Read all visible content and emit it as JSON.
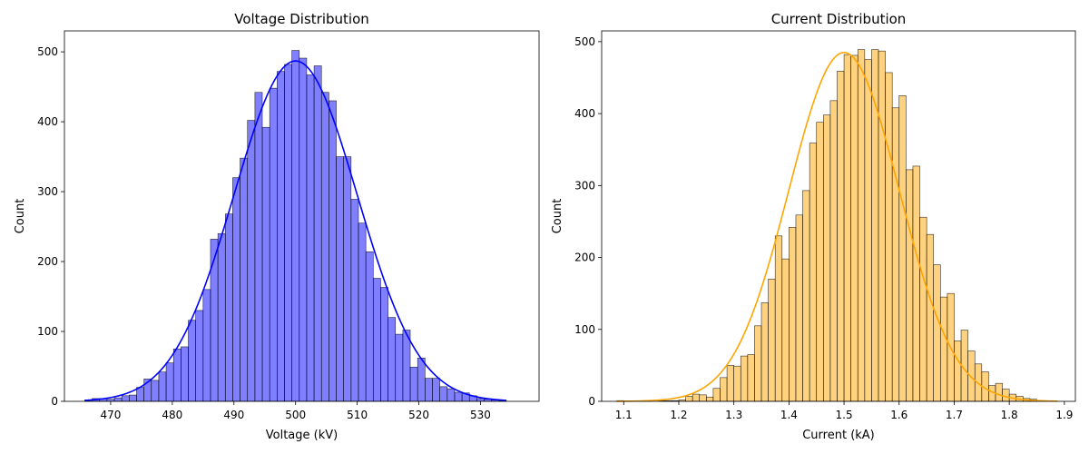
{
  "chart_data": [
    {
      "type": "histogram",
      "title": "Voltage Distribution",
      "xlabel": "Voltage (kV)",
      "ylabel": "Count",
      "xlim": [
        462.5,
        539.5
      ],
      "ylim": [
        0,
        530
      ],
      "x_ticks": [
        "470",
        "480",
        "490",
        "500",
        "510",
        "520",
        "530"
      ],
      "y_ticks": [
        "0",
        "100",
        "200",
        "300",
        "400",
        "500"
      ],
      "bar_color": "#0000ff",
      "bar_opacity": 0.5,
      "kde_color": "#0000ff",
      "bin_width": 1.2,
      "bin_start": 465.8,
      "counts": [
        2,
        4,
        4,
        3,
        5,
        8,
        9,
        20,
        32,
        30,
        42,
        55,
        75,
        78,
        116,
        130,
        160,
        232,
        240,
        268,
        320,
        348,
        402,
        442,
        392,
        448,
        472,
        482,
        502,
        491,
        467,
        480,
        442,
        430,
        350,
        350,
        289,
        255,
        214,
        176,
        163,
        120,
        96,
        102,
        49,
        62,
        33,
        33,
        21,
        18,
        13,
        12,
        8,
        4,
        3,
        2,
        1
      ],
      "kde_peak": 487,
      "kde_mean": 500.0,
      "kde_sd": 10.0
    },
    {
      "type": "histogram",
      "title": "Current Distribution",
      "xlabel": "Current (kA)",
      "ylabel": "Count",
      "xlim": [
        1.06,
        1.92
      ],
      "ylim": [
        0,
        515
      ],
      "x_ticks": [
        "1.1",
        "1.2",
        "1.3",
        "1.4",
        "1.5",
        "1.6",
        "1.7",
        "1.8",
        "1.9"
      ],
      "y_ticks": [
        "0",
        "100",
        "200",
        "300",
        "400",
        "500"
      ],
      "bar_color": "#ffa500",
      "bar_opacity": 0.5,
      "kde_color": "#ffa500",
      "bin_width": 0.0125,
      "bin_start": 1.0875,
      "counts": [
        1,
        0,
        0,
        0,
        1,
        0,
        1,
        1,
        1,
        2,
        7,
        10,
        9,
        6,
        18,
        33,
        50,
        49,
        63,
        65,
        105,
        137,
        170,
        230,
        198,
        242,
        259,
        293,
        359,
        388,
        398,
        418,
        459,
        482,
        481,
        489,
        475,
        489,
        487,
        457,
        408,
        425,
        322,
        327,
        256,
        232,
        190,
        145,
        150,
        84,
        99,
        70,
        52,
        41,
        22,
        25,
        17,
        10,
        7,
        4,
        3,
        1,
        0,
        0
      ],
      "kde_peak": 485,
      "kde_mean": 1.5,
      "kde_sd": 0.1
    }
  ]
}
